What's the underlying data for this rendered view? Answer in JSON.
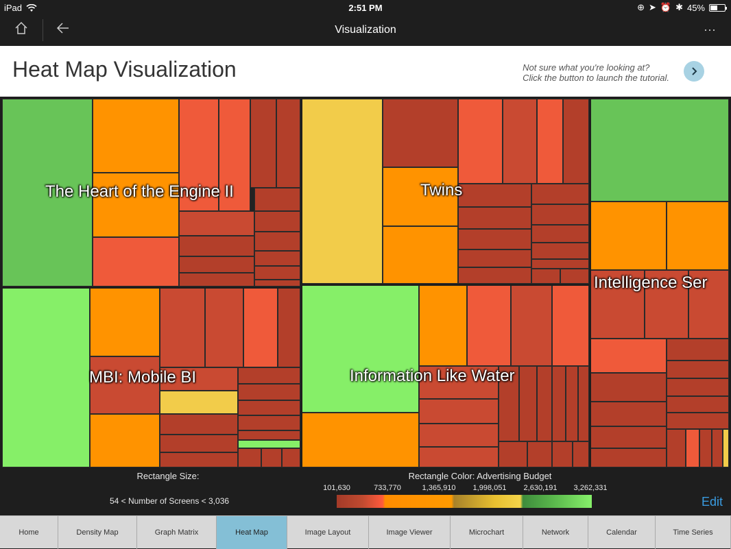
{
  "status_bar": {
    "device": "iPad",
    "time": "2:51 PM",
    "battery": "45%"
  },
  "nav": {
    "title": "Visualization",
    "home_icon": "home-icon",
    "back_icon": "back-arrow-icon",
    "more_icon": "more-dots-icon"
  },
  "header": {
    "title": "Heat Map Visualization",
    "hint_line1": "Not sure what you're looking at?",
    "hint_line2": "Click the button to launch the tutorial."
  },
  "treemap": {
    "groups": [
      {
        "label": "The Heart of the Engine II"
      },
      {
        "label": "Twins"
      },
      {
        "label": "Intelligence Ser"
      },
      {
        "label": "MBI: Mobile BI"
      },
      {
        "label": "Information Like Water"
      }
    ]
  },
  "legend": {
    "size_title": "Rectangle Size:",
    "size_range": "54 < Number of Screens < 3,036",
    "color_title": "Rectangle Color: Advertising Budget",
    "ticks": [
      "101,630",
      "733,770",
      "1,365,910",
      "1,998,051",
      "2,630,191",
      "3,262,331"
    ]
  },
  "edit_label": "Edit",
  "tabs": [
    {
      "label": "Home"
    },
    {
      "label": "Density Map"
    },
    {
      "label": "Graph Matrix"
    },
    {
      "label": "Heat Map",
      "active": true
    },
    {
      "label": "Image Layout"
    },
    {
      "label": "Image Viewer"
    },
    {
      "label": "Microchart"
    },
    {
      "label": "Network"
    },
    {
      "label": "Calendar"
    },
    {
      "label": "Time Series"
    }
  ]
}
